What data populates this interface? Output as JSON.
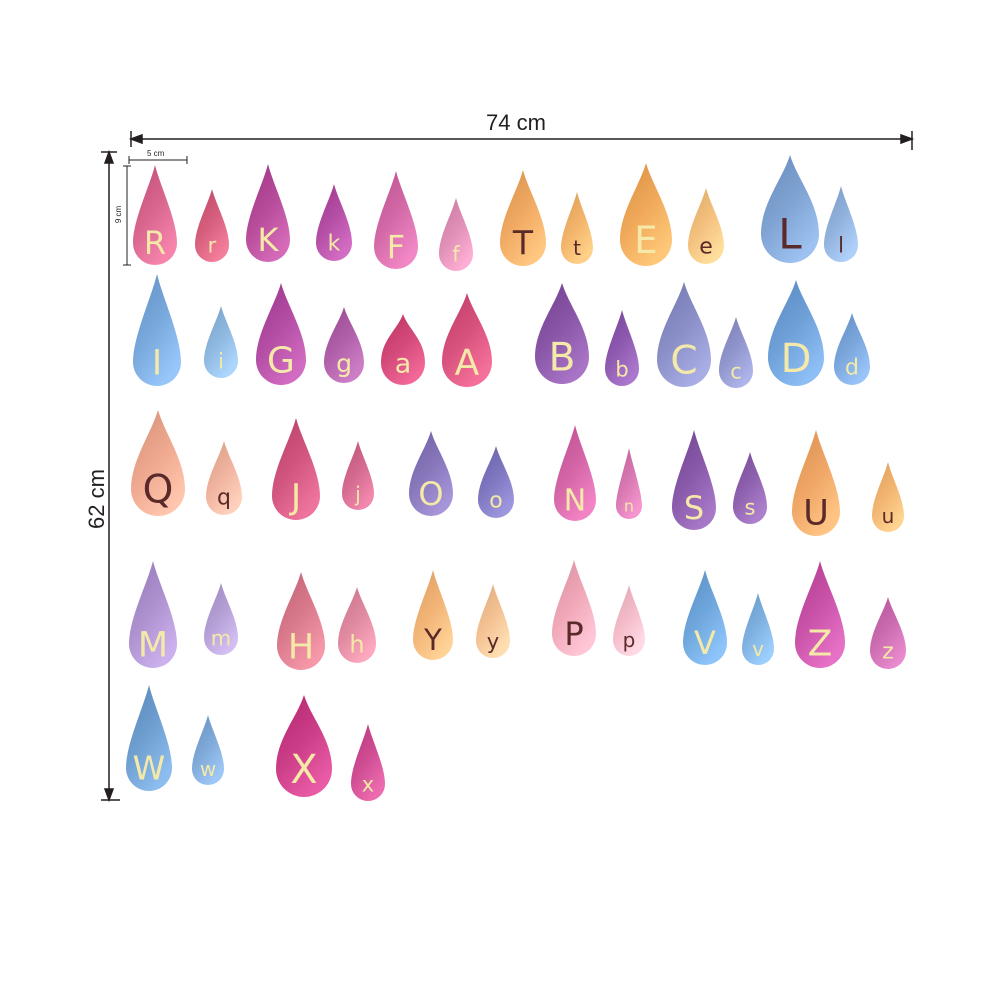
{
  "dimensions": {
    "width_label": "74 cm",
    "height_label": "62 cm",
    "sample_width_label": "5 cm",
    "sample_height_label": "9 cm"
  },
  "colors": {
    "line": "#231f20",
    "letter_light": "#f4e9a8",
    "letter_dark": "#5a2a2a"
  },
  "drops": [
    {
      "letter": "R",
      "color": "#d8668f",
      "dark": false
    },
    {
      "letter": "r",
      "color": "#d65f7d",
      "dark": false
    },
    {
      "letter": "K",
      "color": "#b64c9a",
      "dark": false
    },
    {
      "letter": "k",
      "color": "#b54fa5",
      "dark": false
    },
    {
      "letter": "F",
      "color": "#d469a8",
      "dark": false
    },
    {
      "letter": "f",
      "color": "#e08fb6",
      "dark": false
    },
    {
      "letter": "T",
      "color": "#f0a962",
      "dark": true
    },
    {
      "letter": "t",
      "color": "#f2b36a",
      "dark": true
    },
    {
      "letter": "E",
      "color": "#f0a95a",
      "dark": false
    },
    {
      "letter": "e",
      "color": "#f4c07e",
      "dark": true
    },
    {
      "letter": "L",
      "color": "#7fa3d2",
      "dark": true
    },
    {
      "letter": "l",
      "color": "#90b2dc",
      "dark": true
    },
    {
      "letter": "I",
      "color": "#78a8dc",
      "dark": false
    },
    {
      "letter": "i",
      "color": "#8fb8e0",
      "dark": false
    },
    {
      "letter": "G",
      "color": "#b44ea4",
      "dark": false
    },
    {
      "letter": "g",
      "color": "#b060a8",
      "dark": false
    },
    {
      "letter": "a",
      "color": "#d44a7a",
      "dark": false
    },
    {
      "letter": "A",
      "color": "#d8527e",
      "dark": false
    },
    {
      "letter": "B",
      "color": "#8a57a8",
      "dark": false
    },
    {
      "letter": "b",
      "color": "#8d5ab0",
      "dark": false
    },
    {
      "letter": "C",
      "color": "#8b8fc8",
      "dark": false
    },
    {
      "letter": "c",
      "color": "#9095cc",
      "dark": false
    },
    {
      "letter": "D",
      "color": "#6fa0d8",
      "dark": false
    },
    {
      "letter": "d",
      "color": "#7aa6dc",
      "dark": false
    },
    {
      "letter": "Q",
      "color": "#eea88f",
      "dark": true
    },
    {
      "letter": "q",
      "color": "#f0b39e",
      "dark": true
    },
    {
      "letter": "J",
      "color": "#d0557f",
      "dark": false
    },
    {
      "letter": "j",
      "color": "#d46a90",
      "dark": false
    },
    {
      "letter": "O",
      "color": "#8877bb",
      "dark": false
    },
    {
      "letter": "o",
      "color": "#7f78c0",
      "dark": false
    },
    {
      "letter": "N",
      "color": "#d466a8",
      "dark": false
    },
    {
      "letter": "n",
      "color": "#d878b2",
      "dark": false
    },
    {
      "letter": "S",
      "color": "#8a5aaa",
      "dark": false
    },
    {
      "letter": "s",
      "color": "#8f62b0",
      "dark": false
    },
    {
      "letter": "U",
      "color": "#efa666",
      "dark": true
    },
    {
      "letter": "u",
      "color": "#f2b572",
      "dark": true
    },
    {
      "letter": "M",
      "color": "#ad92cf",
      "dark": false
    },
    {
      "letter": "m",
      "color": "#b5a0d6",
      "dark": false
    },
    {
      "letter": "H",
      "color": "#d97a8c",
      "dark": false
    },
    {
      "letter": "h",
      "color": "#df8aa0",
      "dark": false
    },
    {
      "letter": "Y",
      "color": "#f2b477",
      "dark": true
    },
    {
      "letter": "y",
      "color": "#f4c193",
      "dark": true
    },
    {
      "letter": "P",
      "color": "#f0a8b8",
      "dark": true
    },
    {
      "letter": "p",
      "color": "#f4bcc8",
      "dark": true
    },
    {
      "letter": "V",
      "color": "#6fa6dc",
      "dark": false
    },
    {
      "letter": "v",
      "color": "#7eb0e0",
      "dark": false
    },
    {
      "letter": "Z",
      "color": "#c853a8",
      "dark": false
    },
    {
      "letter": "z",
      "color": "#cc6cb0",
      "dark": false
    },
    {
      "letter": "W",
      "color": "#6f9fd0",
      "dark": false
    },
    {
      "letter": "w",
      "color": "#7fa9d8",
      "dark": false
    },
    {
      "letter": "X",
      "color": "#cc3d88",
      "dark": false
    },
    {
      "letter": "x",
      "color": "#cf4d92",
      "dark": false
    }
  ]
}
